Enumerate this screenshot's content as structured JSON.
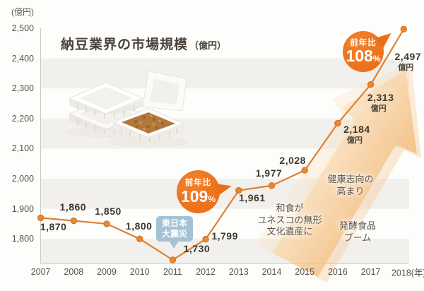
{
  "colors": {
    "line": "#df8133",
    "point": "#e8872f",
    "point_edge": "#d3701f",
    "badge_orange": "#ed6c19",
    "tooltip_blue": "#a4c2d6",
    "band_gray": "#f1f0ed",
    "axis_gray": "#ccc9c4",
    "arrow_light": "#fce7cb",
    "arrow_dark": "#f0aa5c",
    "tick_text": "#58534c",
    "label_text": "#3e382f"
  },
  "chart_data": {
    "type": "line",
    "title": "納豆業界の市場規模",
    "title_unit": "（億円）",
    "y_axis_unit": "(億円)",
    "x_suffix": "(年)",
    "years": [
      "2007",
      "2008",
      "2009",
      "2010",
      "2011",
      "2012",
      "2013",
      "2014",
      "2015",
      "2016",
      "2017",
      "2018"
    ],
    "values": [
      1870,
      1860,
      1850,
      1800,
      1730,
      1799,
      1961,
      1977,
      2028,
      2184,
      2313,
      2497
    ],
    "point_labels": [
      "1,870",
      "1,860",
      "1,850",
      "1,800",
      "1,730",
      "1,799",
      "1,961",
      "1,977",
      "2,028",
      "2,184",
      "2,313",
      "2,497"
    ],
    "point_unit_labels": [
      "",
      "",
      "",
      "",
      "",
      "",
      "",
      "",
      "",
      "億円",
      "億円",
      "億円"
    ],
    "y_ticks": [
      "2,500",
      "2,400",
      "2,300",
      "2,200",
      "2,100",
      "2,000",
      "1,900",
      "1,800"
    ],
    "y_tick_values": [
      2500,
      2400,
      2300,
      2200,
      2100,
      2000,
      1900,
      1800
    ],
    "ylim": [
      1718,
      2500
    ],
    "grid": "alternating horizontal bands",
    "legend": "none",
    "badges": [
      {
        "label": "前年比",
        "value": "109",
        "unit": "%",
        "anchor_year": "2013"
      },
      {
        "label": "前年比",
        "value": "108",
        "unit": "%",
        "anchor_year": "2018"
      }
    ],
    "event_tooltip": {
      "lines": [
        "東日本",
        "大震災"
      ],
      "anchor_year": "2011"
    },
    "annotations": [
      {
        "lines": [
          "和食が",
          "ユネスコの無形",
          "文化遺産に"
        ]
      },
      {
        "lines": [
          "健康志向の",
          "高まり"
        ]
      },
      {
        "lines": [
          "発酵食品",
          "ブーム"
        ]
      }
    ]
  }
}
